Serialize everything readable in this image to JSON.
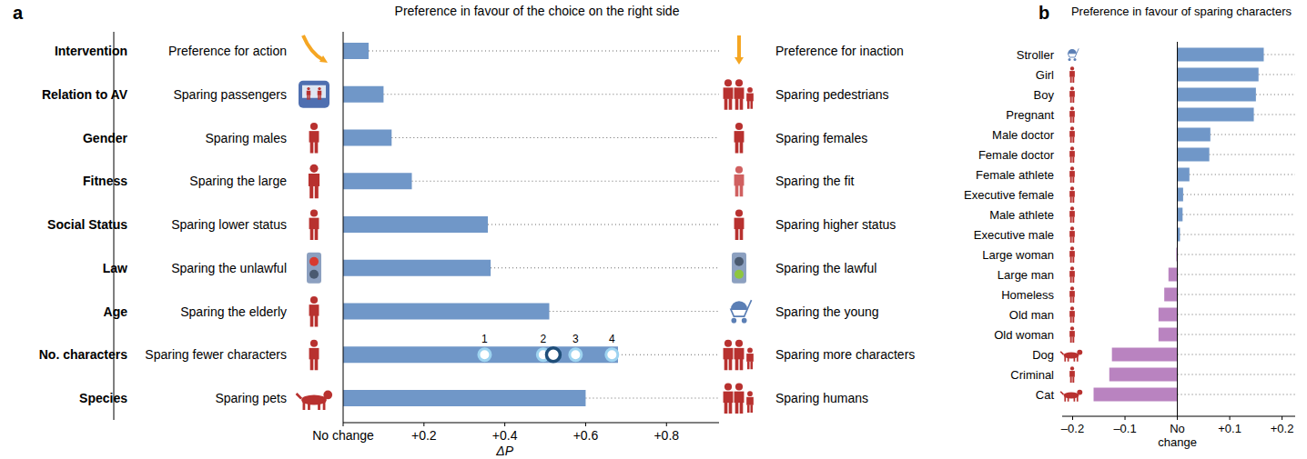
{
  "chart_data": [
    {
      "type": "bar",
      "orientation": "horizontal",
      "panel": "a",
      "title": "Preference in favour of the choice on the right side",
      "categories": [
        "Intervention",
        "Relation to AV",
        "Gender",
        "Fitness",
        "Social Status",
        "Law",
        "Age",
        "No. characters",
        "Species"
      ],
      "left_labels": [
        "Preference for action",
        "Sparing passengers",
        "Sparing males",
        "Sparing the large",
        "Sparing lower status",
        "Sparing the unlawful",
        "Sparing the elderly",
        "Sparing fewer characters",
        "Sparing pets"
      ],
      "right_labels": [
        "Preference for inaction",
        "Sparing pedestrians",
        "Sparing females",
        "Sparing the fit",
        "Sparing higher status",
        "Sparing the lawful",
        "Sparing the young",
        "Sparing more characters",
        "Sparing humans"
      ],
      "values": [
        0.063,
        0.1,
        0.12,
        0.17,
        0.358,
        0.365,
        0.51,
        0.68,
        0.6
      ],
      "color": "#7097c8",
      "x_label": "ΔP",
      "xlim": [
        0,
        0.93
      ],
      "xticks": [
        {
          "value": 0,
          "label": "No change"
        },
        {
          "value": 0.2,
          "label": "+0.2"
        },
        {
          "value": 0.4,
          "label": "+0.4"
        },
        {
          "value": 0.6,
          "label": "+0.6"
        },
        {
          "value": 0.8,
          "label": "+0.8"
        }
      ],
      "character_markers": {
        "category": "No. characters",
        "labels": [
          "1",
          "2",
          "3",
          "4"
        ],
        "values": [
          0.35,
          0.495,
          0.575,
          0.665
        ],
        "mean": 0.52
      }
    },
    {
      "type": "bar",
      "orientation": "horizontal",
      "panel": "b",
      "title": "Preference in favour of sparing characters",
      "categories": [
        "Stroller",
        "Girl",
        "Boy",
        "Pregnant",
        "Male doctor",
        "Female doctor",
        "Female athlete",
        "Executive female",
        "Male athlete",
        "Executive male",
        "Large woman",
        "Large man",
        "Homeless",
        "Old man",
        "Old woman",
        "Dog",
        "Criminal",
        "Cat"
      ],
      "values": [
        0.165,
        0.155,
        0.15,
        0.146,
        0.063,
        0.061,
        0.023,
        0.011,
        0.01,
        0.005,
        -0.002,
        -0.017,
        -0.025,
        -0.036,
        -0.036,
        -0.125,
        -0.13,
        -0.16
      ],
      "colors": [
        "#7097c8",
        "#7097c8",
        "#7097c8",
        "#7097c8",
        "#7097c8",
        "#7097c8",
        "#7097c8",
        "#7097c8",
        "#7097c8",
        "#7097c8",
        "#b983c0",
        "#b983c0",
        "#b983c0",
        "#b983c0",
        "#b983c0",
        "#b983c0",
        "#b983c0",
        "#b983c0"
      ],
      "xlim": [
        -0.22,
        0.225
      ],
      "xticks": [
        {
          "value": -0.2,
          "label": "–0.2"
        },
        {
          "value": -0.1,
          "label": "–0.1"
        },
        {
          "value": 0,
          "label": "No change"
        },
        {
          "value": 0.1,
          "label": "+0.1"
        },
        {
          "value": 0.2,
          "label": "+0.2"
        }
      ]
    }
  ]
}
